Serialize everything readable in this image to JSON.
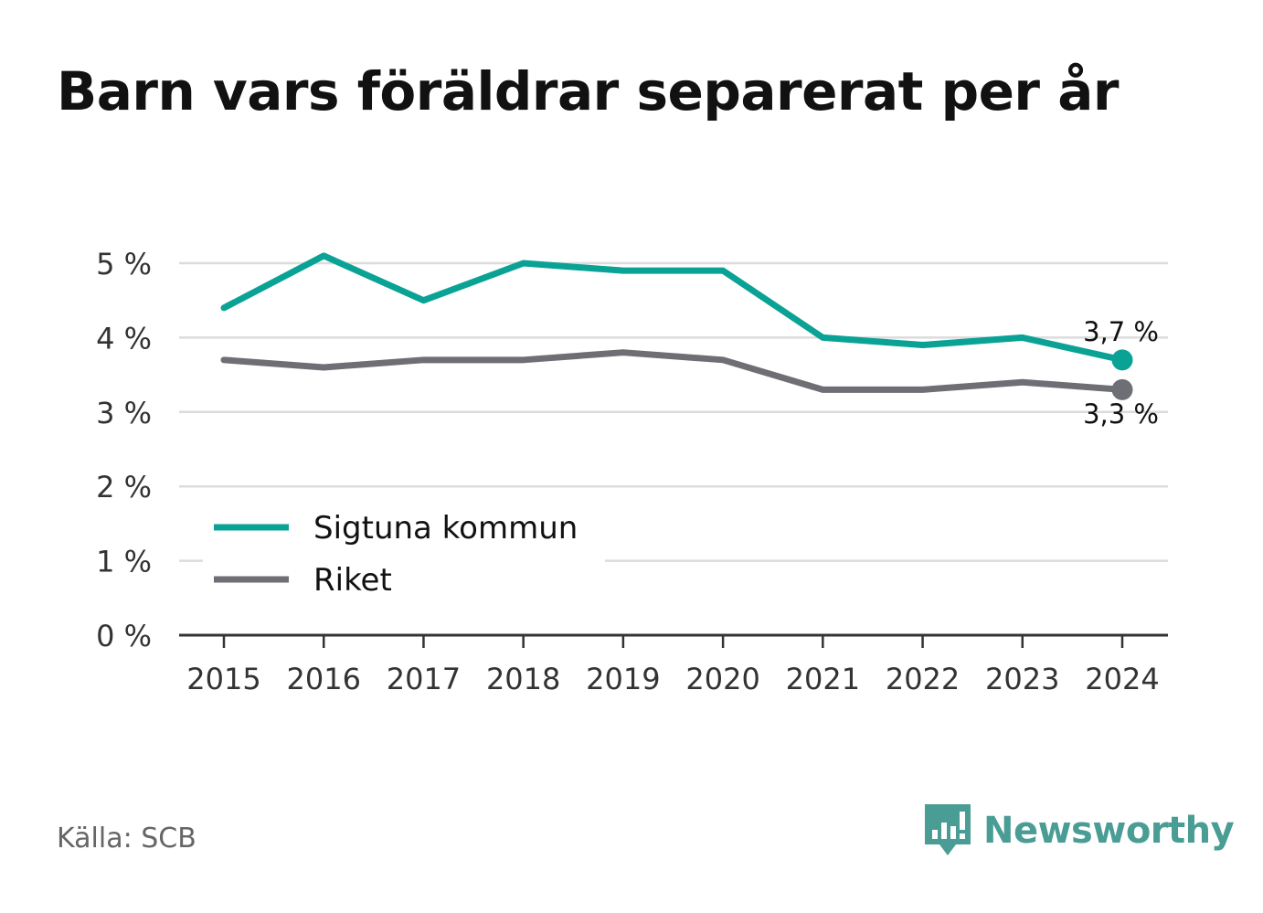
{
  "title": "Barn vars föräldrar separerat per år",
  "source": "Källa: SCB",
  "brand": {
    "name": "Newsworthy",
    "icon": "newsworthy-logo-icon"
  },
  "colors": {
    "sigtuna": "#0aa295",
    "riket": "#6e6e75",
    "grid": "#dcdcdc",
    "axis": "#333333",
    "brand": "#4a9d94"
  },
  "chart_data": {
    "type": "line",
    "x": [
      2015,
      2016,
      2017,
      2018,
      2019,
      2020,
      2021,
      2022,
      2023,
      2024
    ],
    "x_tick_labels": [
      "2015",
      "2016",
      "2017",
      "2018",
      "2019",
      "2020",
      "2021",
      "2022",
      "2023",
      "2024"
    ],
    "y_ticks": [
      0,
      1,
      2,
      3,
      4,
      5
    ],
    "y_tick_labels": [
      "0 %",
      "1 %",
      "2 %",
      "3 %",
      "4 %",
      "5 %"
    ],
    "ylim": [
      0,
      5
    ],
    "grid": true,
    "legend_position": "bottom-left",
    "series": [
      {
        "name": "Sigtuna kommun",
        "color": "#0aa295",
        "values": [
          4.4,
          5.1,
          4.5,
          5.0,
          4.9,
          4.9,
          4.0,
          3.9,
          4.0,
          3.7
        ],
        "end_label": "3,7 %"
      },
      {
        "name": "Riket",
        "color": "#6e6e75",
        "values": [
          3.7,
          3.6,
          3.7,
          3.7,
          3.8,
          3.7,
          3.3,
          3.3,
          3.4,
          3.3
        ],
        "end_label": "3,3 %"
      }
    ]
  }
}
